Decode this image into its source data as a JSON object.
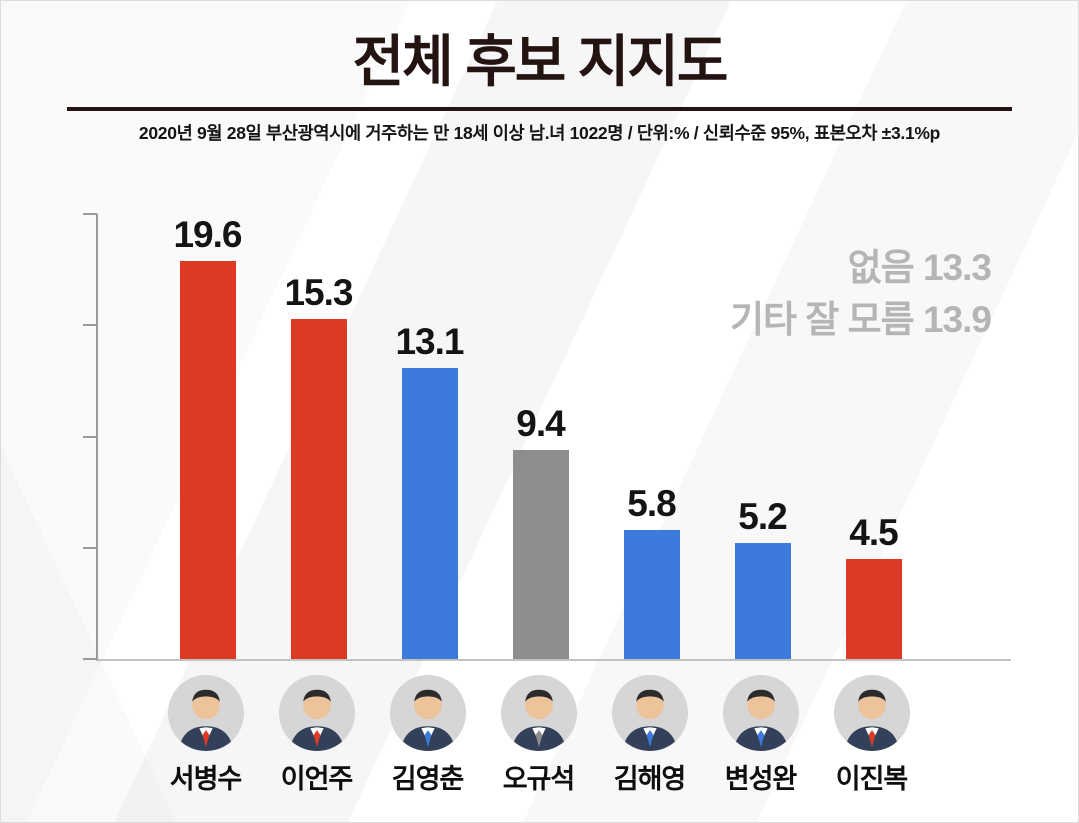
{
  "page": {
    "title": "전체 후보 지지도",
    "subtitle": "2020년 9월 28일  부산광역시에 거주하는 만 18세 이상 남.녀 1022명 / 단위:% / 신뢰수준 95%, 표본오차 ±3.1%p"
  },
  "annotation": {
    "none_label": "없음",
    "none_value": "13.3",
    "etc_label": "기타 잘 모름",
    "etc_value": "13.9"
  },
  "chart_data": {
    "type": "bar",
    "title": "전체 후보 지지도",
    "categories": [
      "서병수",
      "이언주",
      "김영춘",
      "오규석",
      "김해영",
      "변성완",
      "이진복"
    ],
    "values": [
      19.6,
      15.3,
      13.1,
      9.4,
      5.8,
      5.2,
      4.5
    ],
    "bar_colors": [
      "#dd3a25",
      "#dd3a25",
      "#3c7bdb",
      "#8d8d8d",
      "#3c7bdb",
      "#3c7bdb",
      "#dd3a25"
    ],
    "unit": "%",
    "xlabel": "",
    "ylabel": "",
    "ylim": [
      0,
      20
    ],
    "y_ticks": [
      0,
      5,
      10,
      15,
      20
    ],
    "grid": false,
    "legend": false,
    "annotations": [
      {
        "label": "없음",
        "value": 13.3
      },
      {
        "label": "기타 잘 모름",
        "value": 13.9
      }
    ]
  },
  "colors": {
    "bar_red": "#dd3a25",
    "bar_blue": "#3c7bdb",
    "bar_gray": "#8d8d8d",
    "annotation_gray": "#b5b5b5",
    "title_dark": "#241411",
    "axis_gray": "#9a9a9a"
  }
}
